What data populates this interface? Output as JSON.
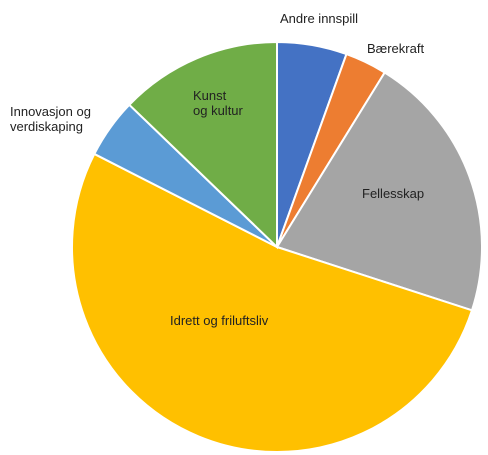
{
  "chart_data": {
    "type": "pie",
    "title": "",
    "slices": [
      {
        "label": "Andre innspill",
        "value": 5.5,
        "color": "#4472C4"
      },
      {
        "label": "Bærekraft",
        "value": 3.3,
        "color": "#ED7D31"
      },
      {
        "label": "Fellesskap",
        "value": 21.2,
        "color": "#A5A5A5"
      },
      {
        "label": "Idrett og friluftsliv",
        "value": 52.5,
        "color": "#FFC000"
      },
      {
        "label": "Innovasjon og verdiskaping",
        "value": 4.7,
        "color": "#5B9BD5"
      },
      {
        "label": "Kunst og kultur",
        "value": 12.8,
        "color": "#70AD47"
      }
    ],
    "start_angle_deg": 0,
    "direction": "clockwise",
    "legend": "none",
    "labels": "on-chart"
  }
}
